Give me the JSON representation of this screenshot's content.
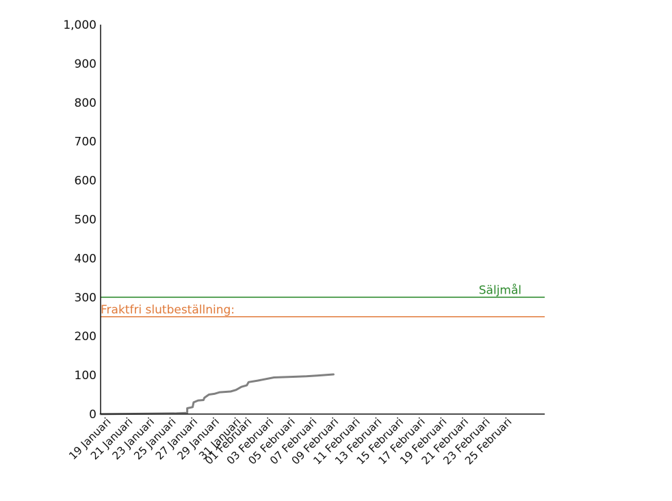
{
  "chart_data": {
    "type": "line",
    "title": "",
    "xlabel": "",
    "ylabel": "",
    "ylim": [
      0,
      1000
    ],
    "xlim": [
      "2021-01-18",
      "2021-02-28"
    ],
    "grid": false,
    "y_ticks": [
      "0",
      "100",
      "200",
      "300",
      "400",
      "500",
      "600",
      "700",
      "800",
      "900",
      "1,000"
    ],
    "x_ticks": [
      {
        "date": "2021-01-19",
        "label": "19 Januari"
      },
      {
        "date": "2021-01-21",
        "label": "21 Januari"
      },
      {
        "date": "2021-01-23",
        "label": "23 Januari"
      },
      {
        "date": "2021-01-25",
        "label": "25 Januari"
      },
      {
        "date": "2021-01-27",
        "label": "27 Januari"
      },
      {
        "date": "2021-01-29",
        "label": "29 Januari"
      },
      {
        "date": "2021-01-31",
        "label": "31 Januari"
      },
      {
        "date": "2021-02-01",
        "label": "01 Februari"
      },
      {
        "date": "2021-02-03",
        "label": "03 Februari"
      },
      {
        "date": "2021-02-05",
        "label": "05 Februari"
      },
      {
        "date": "2021-02-07",
        "label": "07 Februari"
      },
      {
        "date": "2021-02-09",
        "label": "09 Februari"
      },
      {
        "date": "2021-02-11",
        "label": "11 Februari"
      },
      {
        "date": "2021-02-13",
        "label": "13 Februari"
      },
      {
        "date": "2021-02-15",
        "label": "15 Februari"
      },
      {
        "date": "2021-02-17",
        "label": "17 Februari"
      },
      {
        "date": "2021-02-19",
        "label": "19 Februari"
      },
      {
        "date": "2021-02-21",
        "label": "21 Februari"
      },
      {
        "date": "2021-02-23",
        "label": "23 Februari"
      },
      {
        "date": "2021-02-25",
        "label": "25 Februari"
      }
    ],
    "series": [
      {
        "color": "#808080",
        "points": [
          {
            "x": "2021-01-18T00:00",
            "y": 0
          },
          {
            "x": "2021-01-22T00:00",
            "y": 1
          },
          {
            "x": "2021-01-25T00:00",
            "y": 2
          },
          {
            "x": "2021-01-26T00:00",
            "y": 3
          },
          {
            "x": "2021-01-26T00:00",
            "y": 15
          },
          {
            "x": "2021-01-26T12:00",
            "y": 18
          },
          {
            "x": "2021-01-26T14:00",
            "y": 30
          },
          {
            "x": "2021-01-27T00:00",
            "y": 35
          },
          {
            "x": "2021-01-27T12:00",
            "y": 36
          },
          {
            "x": "2021-01-27T14:00",
            "y": 42
          },
          {
            "x": "2021-01-28T00:00",
            "y": 50
          },
          {
            "x": "2021-01-28T12:00",
            "y": 52
          },
          {
            "x": "2021-01-29T00:00",
            "y": 56
          },
          {
            "x": "2021-01-30T00:00",
            "y": 58
          },
          {
            "x": "2021-01-30T12:00",
            "y": 62
          },
          {
            "x": "2021-01-31T00:00",
            "y": 70
          },
          {
            "x": "2021-01-31T12:00",
            "y": 74
          },
          {
            "x": "2021-01-31T16:00",
            "y": 82
          },
          {
            "x": "2021-02-01T12:00",
            "y": 86
          },
          {
            "x": "2021-02-03T00:00",
            "y": 94
          },
          {
            "x": "2021-02-05T00:00",
            "y": 96
          },
          {
            "x": "2021-02-06T00:00",
            "y": 97
          },
          {
            "x": "2021-02-07T00:00",
            "y": 99
          },
          {
            "x": "2021-02-08T12:00",
            "y": 102
          }
        ]
      }
    ],
    "reference_lines": [
      {
        "value": 300,
        "label": "Säljmål",
        "color": "#2e8b2e",
        "label_position": "right"
      },
      {
        "value": 250,
        "label": "Fraktfri slutbeställning:",
        "color": "#e07a3a",
        "label_position": "left"
      }
    ]
  }
}
